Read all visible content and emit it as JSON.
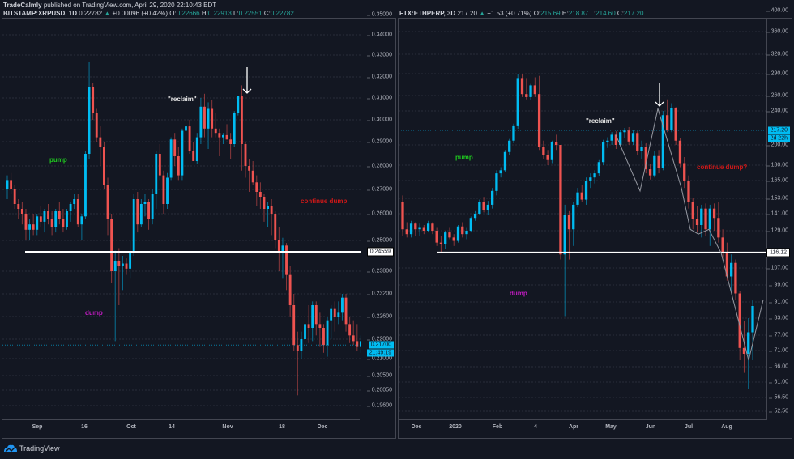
{
  "header": {
    "author": "TradeCalmly",
    "published": "published on TradingView.com, April 29, 2020 22:10:43 EDT"
  },
  "colors": {
    "bg": "#131722",
    "up": "#00bcf2",
    "down": "#ef5350",
    "pump": "#1fcc1f",
    "dump": "#c21bc2",
    "continue": "#d01818",
    "reclaim": "#e6e6e6"
  },
  "left": {
    "symbol": "BITSTAMP:XRPUSD, 1D",
    "last": "0.22782",
    "change": "+0.00096 (+0.42%)",
    "o_label": "O:",
    "o": "0.22666",
    "h_label": "H:",
    "h": "0.22913",
    "l_label": "L:",
    "l": "0.22551",
    "c_label": "C:",
    "c": "0.22782",
    "price_tag": "0.21700",
    "countdown": "21:49:19",
    "level_tag": "0.24559",
    "notes": {
      "pump": "pump",
      "dump": "dump",
      "reclaim": "\"reclaim\"",
      "continue": "continue dump"
    }
  },
  "right": {
    "symbol": "FTX:ETHPERP, 3D",
    "last": "217.20",
    "change": "+1.53 (+0.71%)",
    "o_label": "O:",
    "o": "215.69",
    "h_label": "H:",
    "h": "218.87",
    "l_label": "L:",
    "l": "214.60",
    "c_label": "C:",
    "c": "217.20",
    "price_tag": "217.20",
    "countdown": "2d 22h",
    "level_tag": "116.12",
    "notes": {
      "pump": "pump",
      "dump": "dump",
      "reclaim": "\"reclaim\"",
      "continue": "continue dump?"
    }
  },
  "footer": {
    "brand": "TradingView"
  },
  "chart_data": [
    {
      "type": "candlestick",
      "title": "BITSTAMP:XRPUSD, 1D",
      "xlabel": "",
      "ylabel": "",
      "x_ticks": [
        "Sep",
        "16",
        "Oct",
        "14",
        "Nov",
        "18",
        "Dec"
      ],
      "y_ticks": [
        "0.35000",
        "0.34000",
        "0.33000",
        "0.32000",
        "0.31000",
        "0.30000",
        "0.29000",
        "0.28000",
        "0.27000",
        "0.26000",
        "0.25000",
        "0.23800",
        "0.23200",
        "0.22600",
        "0.22000",
        "0.21000",
        "0.20500",
        "0.20050",
        "0.19600"
      ],
      "ylim": [
        0.194,
        0.352
      ],
      "horizontal_line": 0.24559,
      "annotations": [
        "pump",
        "dump",
        "\"reclaim\"",
        "continue dump",
        "down-arrow at Nov ~0.325"
      ],
      "candles_ohlc": [
        [
          0.27,
          0.276,
          0.266,
          0.274
        ],
        [
          0.274,
          0.277,
          0.268,
          0.27
        ],
        [
          0.27,
          0.272,
          0.262,
          0.264
        ],
        [
          0.264,
          0.266,
          0.258,
          0.262
        ],
        [
          0.262,
          0.265,
          0.256,
          0.26
        ],
        [
          0.26,
          0.262,
          0.25,
          0.254
        ],
        [
          0.254,
          0.258,
          0.25,
          0.256
        ],
        [
          0.256,
          0.26,
          0.252,
          0.254
        ],
        [
          0.254,
          0.26,
          0.252,
          0.259
        ],
        [
          0.259,
          0.263,
          0.255,
          0.257
        ],
        [
          0.257,
          0.262,
          0.253,
          0.261
        ],
        [
          0.261,
          0.264,
          0.256,
          0.258
        ],
        [
          0.258,
          0.261,
          0.252,
          0.255
        ],
        [
          0.255,
          0.262,
          0.253,
          0.261
        ],
        [
          0.261,
          0.265,
          0.256,
          0.258
        ],
        [
          0.258,
          0.262,
          0.253,
          0.255
        ],
        [
          0.255,
          0.262,
          0.254,
          0.261
        ],
        [
          0.261,
          0.265,
          0.257,
          0.264
        ],
        [
          0.264,
          0.268,
          0.262,
          0.266
        ],
        [
          0.266,
          0.268,
          0.255,
          0.256
        ],
        [
          0.256,
          0.26,
          0.25,
          0.259
        ],
        [
          0.259,
          0.286,
          0.258,
          0.285
        ],
        [
          0.285,
          0.327,
          0.283,
          0.315
        ],
        [
          0.315,
          0.317,
          0.3,
          0.303
        ],
        [
          0.303,
          0.305,
          0.29,
          0.292
        ],
        [
          0.292,
          0.297,
          0.28,
          0.288
        ],
        [
          0.288,
          0.29,
          0.27,
          0.272
        ],
        [
          0.272,
          0.275,
          0.252,
          0.258
        ],
        [
          0.258,
          0.26,
          0.235,
          0.238
        ],
        [
          0.238,
          0.246,
          0.219,
          0.242
        ],
        [
          0.242,
          0.247,
          0.229,
          0.24
        ],
        [
          0.24,
          0.244,
          0.233,
          0.241
        ],
        [
          0.241,
          0.243,
          0.237,
          0.239
        ],
        [
          0.239,
          0.25,
          0.236,
          0.245
        ],
        [
          0.245,
          0.268,
          0.244,
          0.266
        ],
        [
          0.266,
          0.269,
          0.253,
          0.256
        ],
        [
          0.256,
          0.266,
          0.255,
          0.264
        ],
        [
          0.264,
          0.268,
          0.259,
          0.265
        ],
        [
          0.265,
          0.266,
          0.254,
          0.258
        ],
        [
          0.258,
          0.27,
          0.256,
          0.268
        ],
        [
          0.268,
          0.286,
          0.262,
          0.285
        ],
        [
          0.285,
          0.289,
          0.274,
          0.276
        ],
        [
          0.276,
          0.278,
          0.26,
          0.264
        ],
        [
          0.264,
          0.277,
          0.262,
          0.275
        ],
        [
          0.275,
          0.292,
          0.274,
          0.291
        ],
        [
          0.291,
          0.294,
          0.28,
          0.284
        ],
        [
          0.284,
          0.288,
          0.274,
          0.276
        ],
        [
          0.276,
          0.296,
          0.274,
          0.295
        ],
        [
          0.295,
          0.302,
          0.284,
          0.297
        ],
        [
          0.297,
          0.3,
          0.285,
          0.286
        ],
        [
          0.286,
          0.29,
          0.282,
          0.282
        ],
        [
          0.282,
          0.294,
          0.281,
          0.292
        ],
        [
          0.292,
          0.31,
          0.289,
          0.306
        ],
        [
          0.306,
          0.312,
          0.292,
          0.296
        ],
        [
          0.296,
          0.308,
          0.287,
          0.305
        ],
        [
          0.305,
          0.309,
          0.292,
          0.296
        ],
        [
          0.296,
          0.303,
          0.292,
          0.294
        ],
        [
          0.294,
          0.296,
          0.284,
          0.292
        ],
        [
          0.292,
          0.294,
          0.289,
          0.293
        ],
        [
          0.293,
          0.298,
          0.291,
          0.291
        ],
        [
          0.291,
          0.294,
          0.283,
          0.289
        ],
        [
          0.289,
          0.304,
          0.288,
          0.303
        ],
        [
          0.303,
          0.311,
          0.302,
          0.311
        ],
        [
          0.311,
          0.316,
          0.278,
          0.289
        ],
        [
          0.289,
          0.29,
          0.275,
          0.28
        ],
        [
          0.28,
          0.283,
          0.269,
          0.278
        ],
        [
          0.278,
          0.282,
          0.272,
          0.273
        ],
        [
          0.273,
          0.276,
          0.263,
          0.269
        ],
        [
          0.269,
          0.273,
          0.262,
          0.267
        ],
        [
          0.267,
          0.268,
          0.257,
          0.262
        ],
        [
          0.262,
          0.265,
          0.255,
          0.263
        ],
        [
          0.263,
          0.266,
          0.252,
          0.26
        ],
        [
          0.26,
          0.261,
          0.247,
          0.25
        ],
        [
          0.25,
          0.255,
          0.238,
          0.245
        ],
        [
          0.245,
          0.251,
          0.236,
          0.248
        ],
        [
          0.248,
          0.249,
          0.233,
          0.237
        ],
        [
          0.237,
          0.24,
          0.226,
          0.229
        ],
        [
          0.229,
          0.232,
          0.214,
          0.217
        ],
        [
          0.217,
          0.222,
          0.199,
          0.214
        ],
        [
          0.214,
          0.222,
          0.21,
          0.22
        ],
        [
          0.22,
          0.226,
          0.208,
          0.224
        ],
        [
          0.224,
          0.229,
          0.218,
          0.223
        ],
        [
          0.223,
          0.23,
          0.219,
          0.229
        ],
        [
          0.229,
          0.23,
          0.221,
          0.224
        ],
        [
          0.224,
          0.227,
          0.216,
          0.223
        ],
        [
          0.223,
          0.224,
          0.213,
          0.217
        ],
        [
          0.217,
          0.226,
          0.211,
          0.225
        ],
        [
          0.225,
          0.229,
          0.22,
          0.228
        ],
        [
          0.228,
          0.23,
          0.222,
          0.226
        ],
        [
          0.226,
          0.23,
          0.224,
          0.227
        ],
        [
          0.227,
          0.232,
          0.225,
          0.231
        ],
        [
          0.231,
          0.232,
          0.222,
          0.224
        ],
        [
          0.224,
          0.226,
          0.218,
          0.221
        ],
        [
          0.221,
          0.225,
          0.217,
          0.219
        ],
        [
          0.219,
          0.224,
          0.214,
          0.216
        ],
        [
          0.216,
          0.221,
          0.213,
          0.219
        ],
        [
          0.219,
          0.22,
          0.213,
          0.217
        ]
      ]
    },
    {
      "type": "candlestick",
      "title": "FTX:ETHPERP, 3D",
      "xlabel": "",
      "ylabel": "",
      "scale": "log",
      "x_ticks": [
        "Dec",
        "2020",
        "Feb",
        "4",
        "Apr",
        "May",
        "Jun",
        "Jul",
        "Aug"
      ],
      "y_ticks": [
        "400.00",
        "360.00",
        "320.00",
        "290.00",
        "260.00",
        "240.00",
        "200.00",
        "180.00",
        "165.00",
        "153.00",
        "141.00",
        "129.00",
        "107.00",
        "99.00",
        "91.00",
        "83.00",
        "77.00",
        "71.00",
        "66.00",
        "61.00",
        "56.50",
        "52.50"
      ],
      "ylim": [
        51,
        420
      ],
      "horizontal_line": 116.12,
      "annotations": [
        "pump",
        "dump",
        "\"reclaim\"",
        "continue dump?",
        "down-arrow at Jun peak ~250"
      ],
      "candles_ohlc": [
        [
          150,
          155,
          126,
          130
        ],
        [
          130,
          135,
          125,
          127
        ],
        [
          127,
          136,
          125,
          134
        ],
        [
          134,
          135,
          126,
          130
        ],
        [
          130,
          134,
          126,
          131
        ],
        [
          131,
          133,
          127,
          129
        ],
        [
          129,
          136,
          128,
          134
        ],
        [
          134,
          135,
          127,
          129
        ],
        [
          129,
          131,
          120,
          122
        ],
        [
          122,
          126,
          116,
          121
        ],
        [
          121,
          129,
          118,
          128
        ],
        [
          128,
          131,
          124,
          125
        ],
        [
          125,
          127,
          120,
          123
        ],
        [
          123,
          133,
          122,
          132
        ],
        [
          132,
          135,
          125,
          127
        ],
        [
          127,
          131,
          124,
          129
        ],
        [
          129,
          139,
          128,
          138
        ],
        [
          138,
          143,
          136,
          141
        ],
        [
          141,
          152,
          140,
          150
        ],
        [
          150,
          154,
          142,
          144
        ],
        [
          144,
          151,
          140,
          148
        ],
        [
          148,
          160,
          145,
          158
        ],
        [
          158,
          175,
          155,
          172
        ],
        [
          172,
          178,
          168,
          175
        ],
        [
          175,
          195,
          173,
          193
        ],
        [
          193,
          207,
          190,
          205
        ],
        [
          205,
          225,
          202,
          222
        ],
        [
          222,
          290,
          219,
          284
        ],
        [
          284,
          290,
          258,
          262
        ],
        [
          262,
          284,
          255,
          258
        ],
        [
          258,
          276,
          254,
          274
        ],
        [
          274,
          285,
          258,
          262
        ],
        [
          262,
          287,
          195,
          198
        ],
        [
          198,
          205,
          186,
          190
        ],
        [
          190,
          195,
          180,
          185
        ],
        [
          185,
          205,
          182,
          203
        ],
        [
          203,
          212,
          195,
          200
        ],
        [
          200,
          200,
          112,
          115
        ],
        [
          115,
          148,
          84,
          140
        ],
        [
          140,
          143,
          112,
          130
        ],
        [
          130,
          150,
          120,
          148
        ],
        [
          148,
          160,
          146,
          157
        ],
        [
          157,
          162,
          150,
          152
        ],
        [
          152,
          168,
          148,
          165
        ],
        [
          165,
          172,
          160,
          168
        ],
        [
          168,
          175,
          163,
          172
        ],
        [
          172,
          185,
          169,
          183
        ],
        [
          183,
          206,
          180,
          203
        ],
        [
          203,
          209,
          197,
          205
        ],
        [
          205,
          215,
          200,
          212
        ],
        [
          212,
          216,
          196,
          200
        ],
        [
          200,
          218,
          198,
          215
        ],
        [
          215,
          220,
          208,
          217
        ],
        [
          217,
          221,
          200,
          204
        ],
        [
          204,
          218,
          200,
          214
        ],
        [
          214,
          216,
          190,
          194
        ],
        [
          194,
          205,
          186,
          198
        ],
        [
          198,
          202,
          172,
          176
        ],
        [
          176,
          181,
          166,
          170
        ],
        [
          170,
          194,
          168,
          189
        ],
        [
          189,
          195,
          172,
          177
        ],
        [
          177,
          240,
          175,
          235
        ],
        [
          235,
          255,
          215,
          218
        ],
        [
          218,
          250,
          215,
          244
        ],
        [
          244,
          245,
          200,
          205
        ],
        [
          205,
          208,
          178,
          182
        ],
        [
          182,
          188,
          160,
          165
        ],
        [
          165,
          170,
          145,
          150
        ],
        [
          150,
          153,
          130,
          137
        ],
        [
          137,
          147,
          128,
          133
        ],
        [
          133,
          148,
          125,
          145
        ],
        [
          145,
          149,
          126,
          130
        ],
        [
          130,
          148,
          120,
          145
        ],
        [
          145,
          149,
          129,
          138
        ],
        [
          138,
          150,
          122,
          125
        ],
        [
          125,
          130,
          113,
          116
        ],
        [
          116,
          122,
          101,
          103
        ],
        [
          103,
          115,
          96,
          110
        ],
        [
          110,
          112,
          92,
          95
        ],
        [
          95,
          96,
          68,
          72
        ],
        [
          72,
          82,
          64,
          70
        ],
        [
          70,
          83,
          59,
          78
        ],
        [
          78,
          92,
          68,
          89
        ]
      ]
    }
  ]
}
